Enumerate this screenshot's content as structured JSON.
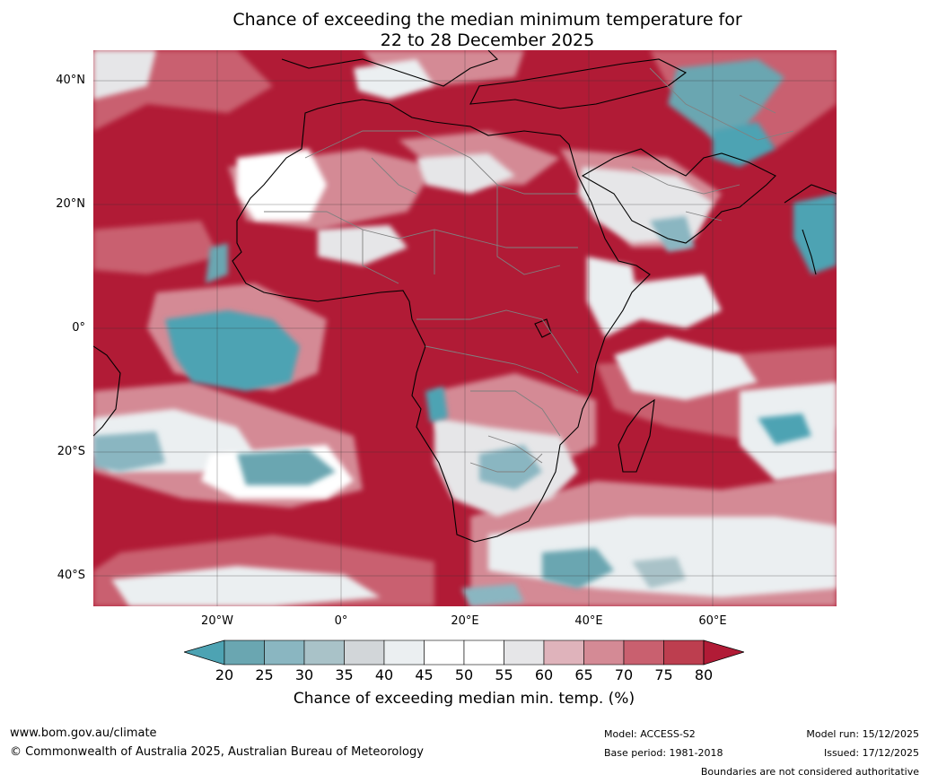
{
  "title": {
    "line1": "Chance of exceeding the median minimum temperature for",
    "line2": "22 to 28 December 2025"
  },
  "map": {
    "latitude_labels": [
      "40°N",
      "20°N",
      "0°",
      "20°S",
      "40°S"
    ],
    "longitude_labels": [
      "20°W",
      "0°",
      "20°E",
      "40°E",
      "60°E"
    ],
    "colors": {
      "below_20": "#4da3b3",
      "above_80": "#b11b36",
      "land_outline": "#000000",
      "country_borders": "#808080",
      "grid": "#333333"
    }
  },
  "legend": {
    "ticks": [
      "20",
      "25",
      "30",
      "35",
      "40",
      "45",
      "50",
      "55",
      "60",
      "65",
      "70",
      "75",
      "80"
    ],
    "segment_colors": [
      "#6aa6b1",
      "#8ab6c1",
      "#a9c2c8",
      "#d2d6d9",
      "#ebeff1",
      "#ffffff",
      "#ffffff",
      "#e6e6e8",
      "#dfb3bb",
      "#d48a95",
      "#c9606f",
      "#bd3e4f"
    ],
    "under_color": "#4da3b3",
    "over_color": "#b11b36",
    "label": "Chance of exceeding median min. temp. (%)"
  },
  "footer": {
    "website": "www.bom.gov.au/climate",
    "copyright": "© Commonwealth of Australia 2025, Australian Bureau of Meteorology",
    "model": "Model: ACCESS-S2",
    "base_period": "Base period: 1981-2018",
    "model_run": "Model run: 15/12/2025",
    "issued": "Issued: 17/12/2025",
    "disclaimer": "Boundaries are not considered authoritative"
  }
}
